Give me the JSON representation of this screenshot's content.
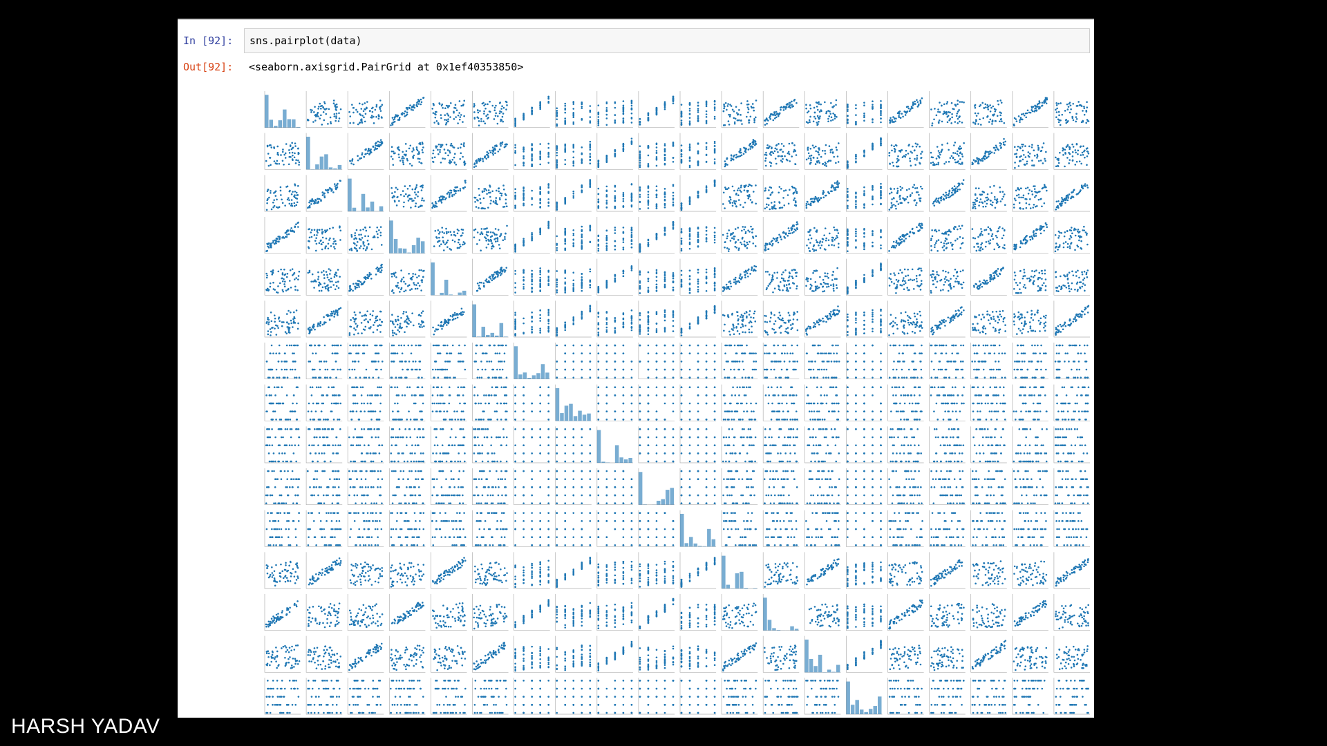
{
  "cell": {
    "in_prompt": "In [92]:",
    "code": "sns.pairplot(data)",
    "out_prompt": "Out[92]:",
    "output": "<seaborn.axisgrid.PairGrid at 0x1ef40353850>"
  },
  "watermark": "HARSH YADAV",
  "colors": {
    "point": "#1f77b4",
    "axes": "#b0b0b0",
    "background": "#000000"
  },
  "chart_data": {
    "type": "scatter",
    "kind": "pairplot",
    "n_variables": 15,
    "n_columns_visible": 20,
    "diagonal": "histogram",
    "title": "",
    "xlabel": "",
    "ylabel": ""
  }
}
